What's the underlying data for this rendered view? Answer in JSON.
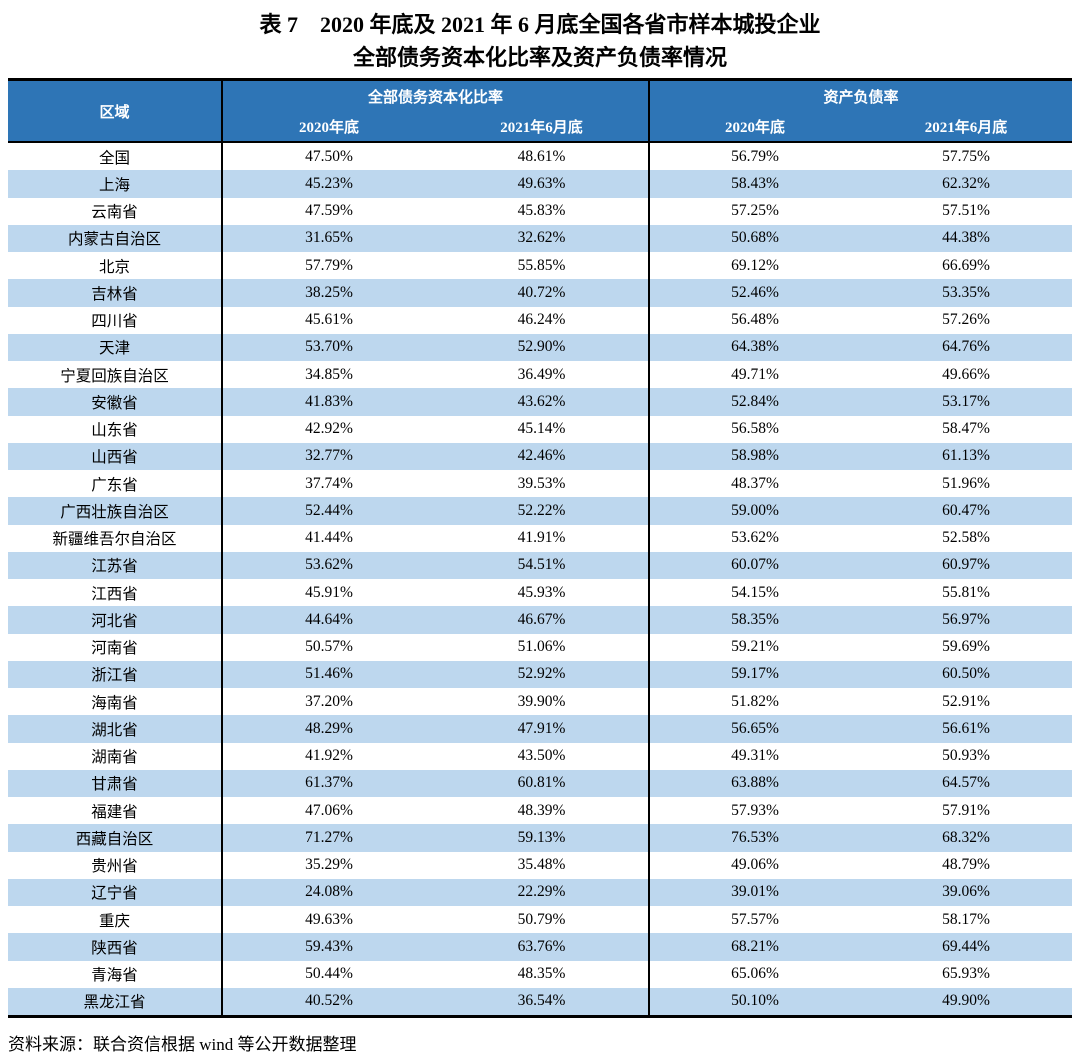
{
  "title": {
    "line1": "表 7　2020 年底及 2021 年 6 月底全国各省市样本城投企业",
    "line2": "全部债务资本化比率及资产负债率情况"
  },
  "table": {
    "region_header": "区域",
    "groups": [
      {
        "label": "全部债务资本化比率",
        "sub": [
          "2020年底",
          "2021年6月底"
        ]
      },
      {
        "label": "资产负债率",
        "sub": [
          "2020年底",
          "2021年6月底"
        ]
      }
    ],
    "rows": [
      {
        "region": "全国",
        "values": [
          "47.50%",
          "48.61%",
          "56.79%",
          "57.75%"
        ]
      },
      {
        "region": "上海",
        "values": [
          "45.23%",
          "49.63%",
          "58.43%",
          "62.32%"
        ]
      },
      {
        "region": "云南省",
        "values": [
          "47.59%",
          "45.83%",
          "57.25%",
          "57.51%"
        ]
      },
      {
        "region": "内蒙古自治区",
        "values": [
          "31.65%",
          "32.62%",
          "50.68%",
          "44.38%"
        ]
      },
      {
        "region": "北京",
        "values": [
          "57.79%",
          "55.85%",
          "69.12%",
          "66.69%"
        ]
      },
      {
        "region": "吉林省",
        "values": [
          "38.25%",
          "40.72%",
          "52.46%",
          "53.35%"
        ]
      },
      {
        "region": "四川省",
        "values": [
          "45.61%",
          "46.24%",
          "56.48%",
          "57.26%"
        ]
      },
      {
        "region": "天津",
        "values": [
          "53.70%",
          "52.90%",
          "64.38%",
          "64.76%"
        ]
      },
      {
        "region": "宁夏回族自治区",
        "values": [
          "34.85%",
          "36.49%",
          "49.71%",
          "49.66%"
        ]
      },
      {
        "region": "安徽省",
        "values": [
          "41.83%",
          "43.62%",
          "52.84%",
          "53.17%"
        ]
      },
      {
        "region": "山东省",
        "values": [
          "42.92%",
          "45.14%",
          "56.58%",
          "58.47%"
        ]
      },
      {
        "region": "山西省",
        "values": [
          "32.77%",
          "42.46%",
          "58.98%",
          "61.13%"
        ]
      },
      {
        "region": "广东省",
        "values": [
          "37.74%",
          "39.53%",
          "48.37%",
          "51.96%"
        ]
      },
      {
        "region": "广西壮族自治区",
        "values": [
          "52.44%",
          "52.22%",
          "59.00%",
          "60.47%"
        ]
      },
      {
        "region": "新疆维吾尔自治区",
        "values": [
          "41.44%",
          "41.91%",
          "53.62%",
          "52.58%"
        ]
      },
      {
        "region": "江苏省",
        "values": [
          "53.62%",
          "54.51%",
          "60.07%",
          "60.97%"
        ]
      },
      {
        "region": "江西省",
        "values": [
          "45.91%",
          "45.93%",
          "54.15%",
          "55.81%"
        ]
      },
      {
        "region": "河北省",
        "values": [
          "44.64%",
          "46.67%",
          "58.35%",
          "56.97%"
        ]
      },
      {
        "region": "河南省",
        "values": [
          "50.57%",
          "51.06%",
          "59.21%",
          "59.69%"
        ]
      },
      {
        "region": "浙江省",
        "values": [
          "51.46%",
          "52.92%",
          "59.17%",
          "60.50%"
        ]
      },
      {
        "region": "海南省",
        "values": [
          "37.20%",
          "39.90%",
          "51.82%",
          "52.91%"
        ]
      },
      {
        "region": "湖北省",
        "values": [
          "48.29%",
          "47.91%",
          "56.65%",
          "56.61%"
        ]
      },
      {
        "region": "湖南省",
        "values": [
          "41.92%",
          "43.50%",
          "49.31%",
          "50.93%"
        ]
      },
      {
        "region": "甘肃省",
        "values": [
          "61.37%",
          "60.81%",
          "63.88%",
          "64.57%"
        ]
      },
      {
        "region": "福建省",
        "values": [
          "47.06%",
          "48.39%",
          "57.93%",
          "57.91%"
        ]
      },
      {
        "region": "西藏自治区",
        "values": [
          "71.27%",
          "59.13%",
          "76.53%",
          "68.32%"
        ]
      },
      {
        "region": "贵州省",
        "values": [
          "35.29%",
          "35.48%",
          "49.06%",
          "48.79%"
        ]
      },
      {
        "region": "辽宁省",
        "values": [
          "24.08%",
          "22.29%",
          "39.01%",
          "39.06%"
        ]
      },
      {
        "region": "重庆",
        "values": [
          "49.63%",
          "50.79%",
          "57.57%",
          "58.17%"
        ]
      },
      {
        "region": "陕西省",
        "values": [
          "59.43%",
          "63.76%",
          "68.21%",
          "69.44%"
        ]
      },
      {
        "region": "青海省",
        "values": [
          "50.44%",
          "48.35%",
          "65.06%",
          "65.93%"
        ]
      },
      {
        "region": "黑龙江省",
        "values": [
          "40.52%",
          "36.54%",
          "50.10%",
          "49.90%"
        ]
      }
    ]
  },
  "footer": {
    "source": "资料来源：联合资信根据 wind 等公开数据整理"
  },
  "colors": {
    "header_bg": "#2E75B6",
    "stripe": "#BDD7EE"
  }
}
